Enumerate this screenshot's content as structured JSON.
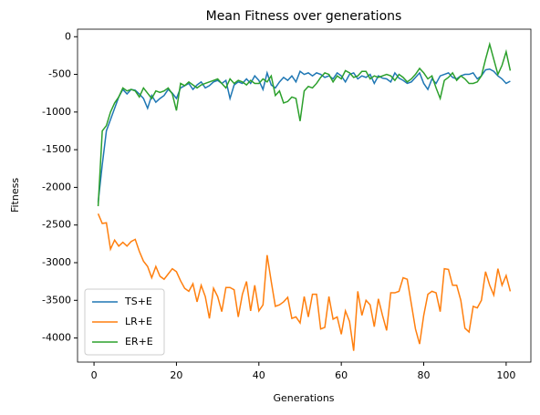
{
  "chart_data": {
    "type": "line",
    "title": "Mean Fitness over generations",
    "xlabel": "Generations",
    "ylabel": "Fitness",
    "x": [
      1,
      2,
      3,
      4,
      5,
      6,
      7,
      8,
      9,
      10,
      11,
      12,
      13,
      14,
      15,
      16,
      17,
      18,
      19,
      20,
      21,
      22,
      23,
      24,
      25,
      26,
      27,
      28,
      29,
      30,
      31,
      32,
      33,
      34,
      35,
      36,
      37,
      38,
      39,
      40,
      41,
      42,
      43,
      44,
      45,
      46,
      47,
      48,
      49,
      50,
      51,
      52,
      53,
      54,
      55,
      56,
      57,
      58,
      59,
      60,
      61,
      62,
      63,
      64,
      65,
      66,
      67,
      68,
      69,
      70,
      71,
      72,
      73,
      74,
      75,
      76,
      77,
      78,
      79,
      80,
      81,
      82,
      83,
      84,
      85,
      86,
      87,
      88,
      89,
      90,
      91,
      92,
      93,
      94,
      95,
      96,
      97,
      98,
      99,
      100,
      101
    ],
    "xlim": [
      -4,
      106
    ],
    "xticks": [
      0,
      20,
      40,
      60,
      80,
      100
    ],
    "ylim": [
      -4320,
      100
    ],
    "yticks": [
      0,
      -500,
      -1000,
      -1500,
      -2000,
      -2500,
      -3000,
      -3500,
      -4000
    ],
    "legend": "lower left",
    "series": [
      {
        "name": "TS+E",
        "color": "#1f77b4",
        "values": [
          -2200,
          -1700,
          -1250,
          -1100,
          -950,
          -800,
          -700,
          -760,
          -700,
          -710,
          -760,
          -820,
          -950,
          -780,
          -870,
          -820,
          -780,
          -700,
          -750,
          -820,
          -680,
          -650,
          -620,
          -700,
          -640,
          -600,
          -680,
          -650,
          -600,
          -580,
          -620,
          -580,
          -820,
          -640,
          -600,
          -620,
          -560,
          -620,
          -520,
          -580,
          -700,
          -480,
          -640,
          -680,
          -600,
          -540,
          -580,
          -520,
          -600,
          -460,
          -500,
          -480,
          -520,
          -480,
          -500,
          -540,
          -520,
          -560,
          -480,
          -520,
          -600,
          -500,
          -480,
          -560,
          -520,
          -540,
          -500,
          -620,
          -520,
          -550,
          -560,
          -600,
          -480,
          -550,
          -580,
          -620,
          -600,
          -540,
          -480,
          -620,
          -700,
          -560,
          -620,
          -520,
          -500,
          -480,
          -540,
          -560,
          -520,
          -500,
          -500,
          -480,
          -560,
          -520,
          -440,
          -430,
          -460,
          -520,
          -560,
          -620,
          -590
        ]
      },
      {
        "name": "LR+E",
        "color": "#ff7f0e",
        "values": [
          -2350,
          -2480,
          -2470,
          -2820,
          -2700,
          -2780,
          -2730,
          -2780,
          -2720,
          -2690,
          -2850,
          -2980,
          -3050,
          -3200,
          -3050,
          -3180,
          -3220,
          -3150,
          -3080,
          -3120,
          -3240,
          -3340,
          -3380,
          -3280,
          -3520,
          -3300,
          -3450,
          -3740,
          -3340,
          -3450,
          -3650,
          -3330,
          -3330,
          -3360,
          -3720,
          -3420,
          -3250,
          -3640,
          -3300,
          -3640,
          -3560,
          -2900,
          -3250,
          -3580,
          -3560,
          -3520,
          -3460,
          -3740,
          -3720,
          -3800,
          -3450,
          -3720,
          -3420,
          -3420,
          -3880,
          -3860,
          -3450,
          -3750,
          -3720,
          -3950,
          -3640,
          -3780,
          -4170,
          -3380,
          -3700,
          -3500,
          -3560,
          -3850,
          -3480,
          -3700,
          -3900,
          -3400,
          -3400,
          -3380,
          -3200,
          -3220,
          -3550,
          -3880,
          -4080,
          -3700,
          -3420,
          -3380,
          -3400,
          -3650,
          -3080,
          -3090,
          -3300,
          -3300,
          -3500,
          -3870,
          -3920,
          -3580,
          -3600,
          -3500,
          -3120,
          -3300,
          -3430,
          -3080,
          -3300,
          -3170,
          -3380
        ]
      },
      {
        "name": "ER+E",
        "color": "#2ca02c",
        "values": [
          -2250,
          -1250,
          -1180,
          -1000,
          -880,
          -800,
          -680,
          -720,
          -700,
          -720,
          -800,
          -680,
          -750,
          -820,
          -720,
          -740,
          -720,
          -680,
          -760,
          -980,
          -620,
          -650,
          -600,
          -640,
          -680,
          -640,
          -620,
          -600,
          -580,
          -560,
          -620,
          -680,
          -560,
          -620,
          -580,
          -600,
          -640,
          -580,
          -620,
          -620,
          -560,
          -600,
          -520,
          -780,
          -720,
          -880,
          -860,
          -800,
          -820,
          -1120,
          -720,
          -660,
          -680,
          -620,
          -540,
          -480,
          -500,
          -600,
          -520,
          -560,
          -450,
          -480,
          -540,
          -520,
          -460,
          -460,
          -560,
          -520,
          -540,
          -520,
          -500,
          -520,
          -580,
          -500,
          -540,
          -600,
          -560,
          -500,
          -420,
          -480,
          -560,
          -520,
          -680,
          -820,
          -580,
          -540,
          -480,
          -580,
          -520,
          -560,
          -620,
          -620,
          -600,
          -520,
          -300,
          -100,
          -300,
          -500,
          -380,
          -200,
          -450
        ]
      }
    ]
  }
}
